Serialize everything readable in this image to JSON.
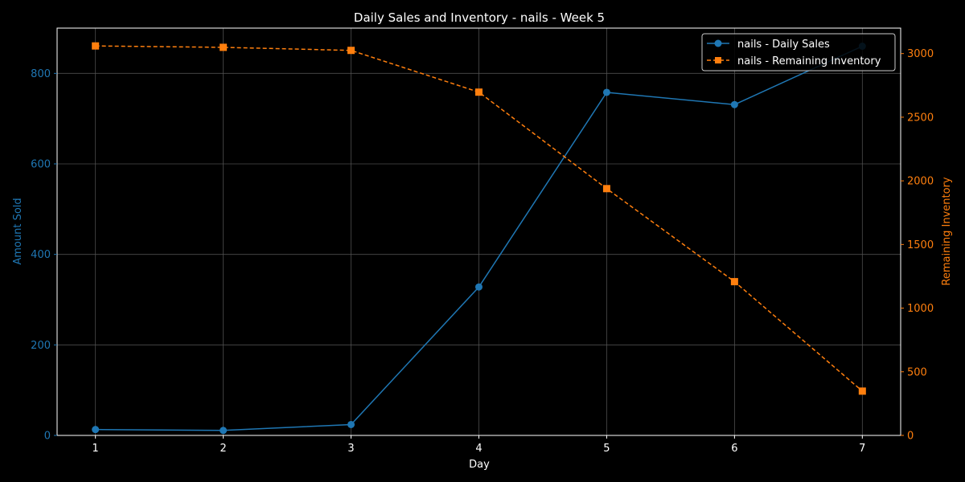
{
  "chart_data": {
    "type": "line",
    "title": "Daily Sales and Inventory - nails - Week 5",
    "xlabel": "Day",
    "ylabel_left": "Amount Sold",
    "ylabel_right": "Remaining Inventory",
    "x": [
      1,
      2,
      3,
      4,
      5,
      6,
      7
    ],
    "xlim": [
      0.7,
      7.3
    ],
    "ylim_left": [
      0,
      900
    ],
    "ylim_right": [
      0,
      3200
    ],
    "yticks_left": [
      0,
      200,
      400,
      600,
      800
    ],
    "yticks_right": [
      0,
      500,
      1000,
      1500,
      2000,
      2500,
      3000
    ],
    "grid": true,
    "legend_position": "top-right",
    "series": [
      {
        "name": "nails - Daily Sales",
        "axis": "left",
        "color": "#1f77b4",
        "line_style": "solid",
        "marker": "circle",
        "values": [
          13,
          11,
          24,
          328,
          758,
          731,
          860
        ]
      },
      {
        "name": "nails - Remaining Inventory",
        "axis": "right",
        "color": "#ff7f0e",
        "line_style": "dashed",
        "marker": "square",
        "values": [
          3060,
          3049,
          3025,
          2697,
          1939,
          1208,
          348
        ]
      }
    ]
  },
  "colors": {
    "background": "#000000",
    "foreground": "#ffffff",
    "grid": "#555555",
    "left_axis": "#1f77b4",
    "right_axis": "#ff7f0e"
  }
}
